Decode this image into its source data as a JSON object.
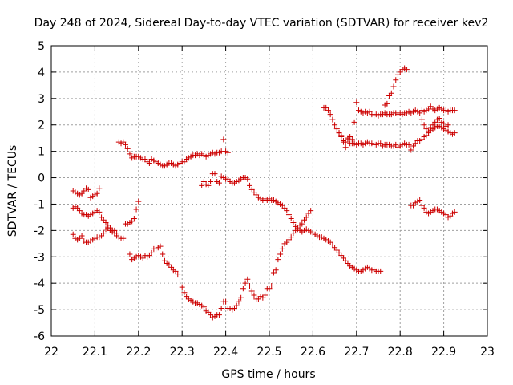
{
  "chart_data": {
    "type": "scatter",
    "title": "Day 248 of 2024, Sidereal Day-to-day VTEC variation (SDTVAR) for receiver kev2",
    "xlabel": "GPS time / hours",
    "ylabel": "SDTVAR / TECUs",
    "xlim": [
      22,
      23
    ],
    "ylim": [
      -6,
      5
    ],
    "xticks": [
      22,
      22.1,
      22.2,
      22.3,
      22.4,
      22.5,
      22.6,
      22.7,
      22.8,
      22.9,
      23
    ],
    "xtick_labels": [
      "22",
      "22.1",
      "22.2",
      "22.3",
      "22.4",
      "22.5",
      "22.6",
      "22.7",
      "22.8",
      "22.9",
      "23"
    ],
    "yticks": [
      -6,
      -5,
      -4,
      -3,
      -2,
      -1,
      0,
      1,
      2,
      3,
      4,
      5
    ],
    "ytick_labels": [
      "-6",
      "-5",
      "-4",
      "-3",
      "-2",
      "-1",
      "0",
      "1",
      "2",
      "3",
      "4",
      "5"
    ],
    "grid": true,
    "marker_color": "#cc0000",
    "series": [
      {
        "name": "trace-1",
        "x": [
          22.05,
          22.055,
          22.06,
          22.065,
          22.07,
          22.075,
          22.08,
          22.085,
          22.09,
          22.095,
          22.1,
          22.105,
          22.11,
          22.115,
          22.12,
          22.125,
          22.13,
          22.135,
          22.14,
          22.145,
          22.15,
          22.155,
          22.16,
          22.165,
          22.17,
          22.175,
          22.18,
          22.185,
          22.19,
          22.195,
          22.2
        ],
        "y": [
          -2.15,
          -2.3,
          -2.35,
          -2.3,
          -2.2,
          -2.4,
          -2.45,
          -2.45,
          -2.4,
          -2.35,
          -2.3,
          -2.25,
          -2.25,
          -2.2,
          -2.1,
          -1.95,
          -1.9,
          -2.0,
          -2.05,
          -2.1,
          -2.2,
          -2.25,
          -2.3,
          -2.3,
          -1.75,
          -1.75,
          -1.7,
          -1.65,
          -1.55,
          -1.2,
          -0.9
        ]
      },
      {
        "name": "trace-2",
        "x": [
          22.05,
          22.055,
          22.06,
          22.065,
          22.07,
          22.075,
          22.08,
          22.085,
          22.09,
          22.095,
          22.1,
          22.105,
          22.11,
          22.115,
          22.12,
          22.125,
          22.13,
          22.135,
          22.14,
          22.145,
          22.15
        ],
        "y": [
          -1.15,
          -1.1,
          -1.15,
          -1.25,
          -1.35,
          -1.4,
          -1.4,
          -1.45,
          -1.4,
          -1.35,
          -1.3,
          -1.25,
          -1.3,
          -1.5,
          -1.6,
          -1.7,
          -1.8,
          -1.9,
          -2.0,
          -2.0,
          -2.1
        ]
      },
      {
        "name": "trace-3",
        "x": [
          22.05,
          22.055,
          22.06,
          22.065,
          22.07,
          22.075,
          22.08,
          22.085,
          22.09,
          22.095,
          22.1,
          22.105,
          22.11
        ],
        "y": [
          -0.5,
          -0.55,
          -0.6,
          -0.65,
          -0.6,
          -0.5,
          -0.4,
          -0.45,
          -0.75,
          -0.7,
          -0.65,
          -0.6,
          -0.4
        ]
      },
      {
        "name": "trace-4",
        "x": [
          22.155,
          22.16,
          22.165,
          22.17,
          22.175,
          22.18,
          22.185,
          22.19,
          22.195,
          22.2,
          22.205,
          22.21,
          22.215,
          22.22,
          22.225,
          22.23,
          22.235,
          22.24,
          22.245,
          22.25,
          22.255,
          22.26,
          22.265,
          22.27,
          22.275,
          22.28,
          22.285,
          22.29,
          22.295,
          22.3,
          22.305,
          22.31,
          22.315,
          22.32,
          22.325,
          22.33,
          22.335,
          22.34,
          22.345,
          22.35,
          22.355,
          22.36,
          22.365,
          22.37,
          22.375,
          22.38,
          22.385,
          22.39,
          22.395,
          22.4,
          22.405
        ],
        "y": [
          1.35,
          1.3,
          1.35,
          1.25,
          1.1,
          0.9,
          0.75,
          0.8,
          0.8,
          0.8,
          0.75,
          0.7,
          0.7,
          0.6,
          0.55,
          0.7,
          0.65,
          0.6,
          0.55,
          0.5,
          0.45,
          0.45,
          0.5,
          0.55,
          0.55,
          0.5,
          0.45,
          0.5,
          0.55,
          0.6,
          0.6,
          0.7,
          0.75,
          0.8,
          0.85,
          0.85,
          0.9,
          0.85,
          0.9,
          0.85,
          0.8,
          0.85,
          0.9,
          0.95,
          0.9,
          0.95,
          0.95,
          1.0,
          1.45,
          1.0,
          0.95
        ]
      },
      {
        "name": "trace-5",
        "x": [
          22.18,
          22.185,
          22.19,
          22.195,
          22.2,
          22.205,
          22.21,
          22.215,
          22.22,
          22.225,
          22.23,
          22.235,
          22.24,
          22.245,
          22.25,
          22.255,
          22.26,
          22.265,
          22.27,
          22.275,
          22.28,
          22.285,
          22.29,
          22.295,
          22.3,
          22.305,
          22.31,
          22.315,
          22.32,
          22.325,
          22.33,
          22.335,
          22.34,
          22.345,
          22.35,
          22.355,
          22.36,
          22.365,
          22.37,
          22.375,
          22.38,
          22.385,
          22.39,
          22.395,
          22.4,
          22.405,
          22.41,
          22.415,
          22.42,
          22.425,
          22.43,
          22.435,
          22.44,
          22.445,
          22.45,
          22.455,
          22.46,
          22.465,
          22.47,
          22.475,
          22.48,
          22.485,
          22.49,
          22.495,
          22.5,
          22.505,
          22.51,
          22.515,
          22.52,
          22.525,
          22.53,
          22.535,
          22.54,
          22.545,
          22.55,
          22.555,
          22.56,
          22.565,
          22.57,
          22.575,
          22.58,
          22.585,
          22.59,
          22.595
        ],
        "y": [
          -2.9,
          -3.1,
          -3.05,
          -3.0,
          -2.95,
          -3.0,
          -3.05,
          -2.95,
          -3.0,
          -2.95,
          -2.85,
          -2.7,
          -2.7,
          -2.65,
          -2.6,
          -2.9,
          -3.15,
          -3.25,
          -3.3,
          -3.4,
          -3.5,
          -3.55,
          -3.65,
          -3.95,
          -4.15,
          -4.35,
          -4.5,
          -4.6,
          -4.65,
          -4.7,
          -4.75,
          -4.75,
          -4.8,
          -4.85,
          -4.9,
          -5.05,
          -5.1,
          -5.2,
          -5.3,
          -5.25,
          -5.2,
          -5.2,
          -4.95,
          -4.7,
          -4.7,
          -4.95,
          -4.95,
          -5.0,
          -4.95,
          -4.85,
          -4.7,
          -4.55,
          -4.2,
          -4.0,
          -3.85,
          -4.1,
          -4.3,
          -4.45,
          -4.6,
          -4.6,
          -4.5,
          -4.55,
          -4.45,
          -4.2,
          -4.2,
          -4.1,
          -3.6,
          -3.5,
          -3.1,
          -2.9,
          -2.7,
          -2.5,
          -2.45,
          -2.35,
          -2.25,
          -2.1,
          -2.0,
          -1.9,
          -1.8,
          -1.75,
          -1.6,
          -1.5,
          -1.35,
          -1.25
        ]
      },
      {
        "name": "trace-6",
        "x": [
          22.345,
          22.35,
          22.355,
          22.36,
          22.365,
          22.37,
          22.375,
          22.38,
          22.385,
          22.39,
          22.395,
          22.4,
          22.405,
          22.41,
          22.415,
          22.42,
          22.425,
          22.43,
          22.435,
          22.44,
          22.445,
          22.45,
          22.455,
          22.46,
          22.465,
          22.47,
          22.475,
          22.48,
          22.485,
          22.49,
          22.495,
          22.5,
          22.505,
          22.51,
          22.515,
          22.52,
          22.525,
          22.53,
          22.535,
          22.54,
          22.545,
          22.55,
          22.555,
          22.56,
          22.565,
          22.57,
          22.575,
          22.58,
          22.585,
          22.59,
          22.595,
          22.6,
          22.605,
          22.61,
          22.615,
          22.62,
          22.625,
          22.63,
          22.635,
          22.64,
          22.645,
          22.65,
          22.655,
          22.66,
          22.665,
          22.67,
          22.675,
          22.68,
          22.685,
          22.69,
          22.695,
          22.7,
          22.705,
          22.71,
          22.715,
          22.72,
          22.725,
          22.73,
          22.735,
          22.74,
          22.745,
          22.75,
          22.755
        ],
        "y": [
          -0.3,
          -0.15,
          -0.25,
          -0.3,
          -0.15,
          0.15,
          0.15,
          -0.15,
          -0.2,
          0.05,
          0.0,
          -0.05,
          -0.05,
          -0.15,
          -0.2,
          -0.2,
          -0.15,
          -0.1,
          -0.05,
          0.0,
          0.0,
          -0.05,
          -0.3,
          -0.45,
          -0.55,
          -0.65,
          -0.75,
          -0.8,
          -0.85,
          -0.8,
          -0.85,
          -0.8,
          -0.85,
          -0.85,
          -0.9,
          -0.95,
          -1.0,
          -1.05,
          -1.15,
          -1.25,
          -1.4,
          -1.55,
          -1.7,
          -1.85,
          -1.95,
          -2.0,
          -2.05,
          -2.0,
          -1.95,
          -2.0,
          -2.05,
          -2.1,
          -2.15,
          -2.2,
          -2.25,
          -2.25,
          -2.3,
          -2.35,
          -2.4,
          -2.45,
          -2.55,
          -2.65,
          -2.75,
          -2.85,
          -2.95,
          -3.05,
          -3.15,
          -3.25,
          -3.35,
          -3.4,
          -3.45,
          -3.5,
          -3.55,
          -3.55,
          -3.5,
          -3.45,
          -3.4,
          -3.45,
          -3.5,
          -3.5,
          -3.55,
          -3.55,
          -3.55
        ]
      },
      {
        "name": "trace-7",
        "x": [
          22.625,
          22.63,
          22.635,
          22.64,
          22.645,
          22.65,
          22.655,
          22.66,
          22.665,
          22.67,
          22.675,
          22.68,
          22.685,
          22.69,
          22.695,
          22.7,
          22.705,
          22.71,
          22.715,
          22.72,
          22.725,
          22.73,
          22.735,
          22.74,
          22.745,
          22.75,
          22.755,
          22.76,
          22.765,
          22.77,
          22.775,
          22.78,
          22.785,
          22.79,
          22.795,
          22.8,
          22.805,
          22.81,
          22.815,
          22.82,
          22.825,
          22.83,
          22.835,
          22.84,
          22.845,
          22.85,
          22.855,
          22.86,
          22.865,
          22.87,
          22.875,
          22.88,
          22.885,
          22.89,
          22.895,
          22.9,
          22.905,
          22.91,
          22.915,
          22.92,
          22.925
        ],
        "y": [
          2.65,
          2.65,
          2.55,
          2.4,
          2.2,
          2.0,
          1.85,
          1.7,
          1.55,
          1.4,
          1.35,
          1.45,
          1.3,
          1.3,
          1.3,
          1.25,
          1.3,
          1.3,
          1.25,
          1.3,
          1.35,
          1.3,
          1.3,
          1.25,
          1.25,
          1.3,
          1.3,
          1.2,
          1.25,
          1.25,
          1.25,
          1.2,
          1.2,
          1.25,
          1.15,
          1.2,
          1.25,
          1.3,
          1.25,
          1.25,
          1.05,
          1.2,
          1.3,
          1.4,
          1.4,
          1.45,
          1.55,
          1.6,
          1.7,
          1.8,
          1.85,
          1.9,
          1.95,
          1.95,
          1.9,
          1.85,
          1.8,
          1.75,
          1.7,
          1.65,
          1.7
        ]
      },
      {
        "name": "trace-8",
        "x": [
          22.66,
          22.665,
          22.67,
          22.675,
          22.68,
          22.685,
          22.69,
          22.695,
          22.7,
          22.705,
          22.71,
          22.715,
          22.72,
          22.725,
          22.73,
          22.735,
          22.74,
          22.745,
          22.75,
          22.755,
          22.76,
          22.765,
          22.77,
          22.775,
          22.78,
          22.785,
          22.79,
          22.795,
          22.8,
          22.805,
          22.81,
          22.815,
          22.82,
          22.825,
          22.83,
          22.835,
          22.84,
          22.845,
          22.85,
          22.855,
          22.86,
          22.865,
          22.87,
          22.875,
          22.88,
          22.885,
          22.89,
          22.895,
          22.9,
          22.905,
          22.91,
          22.915,
          22.92,
          22.925
        ],
        "y": [
          1.7,
          1.6,
          1.35,
          1.15,
          1.5,
          1.55,
          1.45,
          2.1,
          2.85,
          2.55,
          2.5,
          2.45,
          2.5,
          2.45,
          2.5,
          2.4,
          2.35,
          2.4,
          2.35,
          2.4,
          2.4,
          2.45,
          2.4,
          2.4,
          2.4,
          2.45,
          2.45,
          2.4,
          2.45,
          2.4,
          2.45,
          2.45,
          2.5,
          2.45,
          2.5,
          2.55,
          2.5,
          2.45,
          2.55,
          2.5,
          2.55,
          2.6,
          2.7,
          2.6,
          2.55,
          2.6,
          2.65,
          2.6,
          2.55,
          2.55,
          2.5,
          2.55,
          2.55,
          2.55
        ]
      },
      {
        "name": "trace-9",
        "x": [
          22.765,
          22.77,
          22.775,
          22.78,
          22.785,
          22.79,
          22.795,
          22.8,
          22.805,
          22.81,
          22.815
        ],
        "y": [
          2.75,
          2.8,
          3.1,
          3.2,
          3.45,
          3.7,
          3.9,
          4.0,
          4.1,
          4.15,
          4.1
        ]
      },
      {
        "name": "trace-10",
        "x": [
          22.825,
          22.83,
          22.835,
          22.84,
          22.845,
          22.85,
          22.855,
          22.86,
          22.865,
          22.87,
          22.875,
          22.88,
          22.885,
          22.89,
          22.895,
          22.9,
          22.905,
          22.91,
          22.915,
          22.92,
          22.925
        ],
        "y": [
          -1.05,
          -1.05,
          -0.95,
          -0.9,
          -0.85,
          -1.05,
          -1.15,
          -1.3,
          -1.35,
          -1.3,
          -1.25,
          -1.2,
          -1.2,
          -1.25,
          -1.3,
          -1.35,
          -1.4,
          -1.5,
          -1.45,
          -1.35,
          -1.3
        ]
      },
      {
        "name": "trace-11",
        "x": [
          22.85,
          22.855,
          22.86,
          22.865,
          22.87,
          22.875,
          22.88,
          22.885,
          22.89,
          22.895,
          22.9,
          22.905,
          22.91
        ],
        "y": [
          2.2,
          2.0,
          1.85,
          1.75,
          1.9,
          2.0,
          2.1,
          2.2,
          2.25,
          2.1,
          2.05,
          1.95,
          2.0
        ]
      }
    ]
  }
}
